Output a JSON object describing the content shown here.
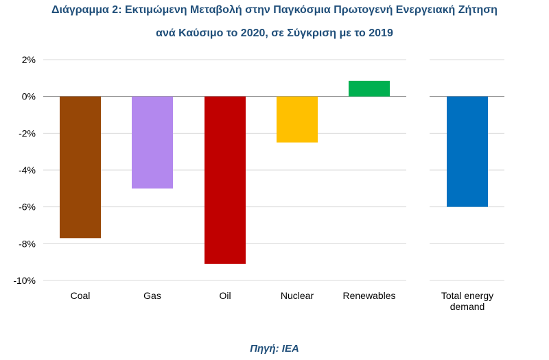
{
  "title_line1": "Διάγραμμα 2: Εκτιμώμενη Μεταβολή στην Παγκόσμια Πρωτογενή Ενεργειακή Ζήτηση",
  "title_line2": "ανά Καύσιμο το 2020, σε Σύγκριση με το 2019",
  "source": "Πηγή: IEA",
  "chart_data": {
    "type": "bar",
    "categories": [
      "Coal",
      "Gas",
      "Oil",
      "Nuclear",
      "Renewables",
      "Total energy demand"
    ],
    "category_lines": [
      [
        "Coal"
      ],
      [
        "Gas"
      ],
      [
        "Oil"
      ],
      [
        "Nuclear"
      ],
      [
        "Renewables"
      ],
      [
        "Total energy",
        "demand"
      ]
    ],
    "values": [
      -7.7,
      -5.0,
      -9.1,
      -2.5,
      0.85,
      -6.0
    ],
    "colors": [
      "#974706",
      "#b388ee",
      "#c00000",
      "#ffc000",
      "#00b050",
      "#0070c0"
    ],
    "yticks": [
      "2%",
      "0%",
      "-2%",
      "-4%",
      "-6%",
      "-8%",
      "-10%"
    ],
    "ylim": [
      -10,
      2
    ],
    "grid": true
  }
}
